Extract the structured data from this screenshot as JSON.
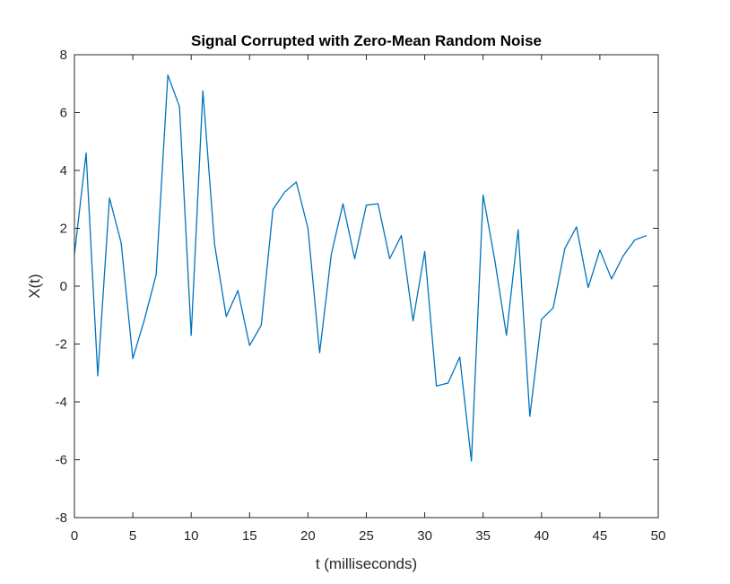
{
  "chart_data": {
    "type": "line",
    "title": "Signal Corrupted with Zero-Mean Random Noise",
    "xlabel": "t (milliseconds)",
    "ylabel": "X(t)",
    "xlim": [
      0,
      50
    ],
    "ylim": [
      -8,
      8
    ],
    "x_ticks": [
      0,
      5,
      10,
      15,
      20,
      25,
      30,
      35,
      40,
      45,
      50
    ],
    "y_ticks": [
      -8,
      -6,
      -4,
      -2,
      0,
      2,
      4,
      6,
      8
    ],
    "grid": false,
    "line_color": "#0072BD",
    "series": [
      {
        "x": [
          0,
          1,
          2,
          3,
          4,
          5,
          6,
          7,
          8,
          9,
          10,
          11,
          12,
          13,
          14,
          15,
          16,
          17,
          18,
          19,
          20,
          21,
          22,
          23,
          24,
          25,
          26,
          27,
          28,
          29,
          30,
          31,
          32,
          33,
          34,
          35,
          36,
          37,
          38,
          39,
          40,
          41,
          42,
          43,
          44,
          45,
          46,
          47,
          48,
          49
        ],
        "values": [
          1.1,
          4.6,
          -3.1,
          3.05,
          1.5,
          -2.5,
          -1.15,
          0.4,
          7.3,
          6.2,
          -1.7,
          6.75,
          1.45,
          -1.05,
          -0.15,
          -2.05,
          -1.35,
          2.65,
          3.25,
          3.6,
          2.0,
          -2.3,
          1.1,
          2.85,
          0.95,
          2.8,
          2.85,
          0.95,
          1.75,
          -1.2,
          1.2,
          -3.45,
          -3.35,
          -2.45,
          -6.05,
          3.15,
          0.9,
          -1.7,
          1.95,
          -4.5,
          -1.15,
          -0.75,
          1.3,
          2.05,
          -0.05,
          1.25,
          0.25,
          1.05,
          1.6,
          1.75
        ]
      }
    ]
  }
}
